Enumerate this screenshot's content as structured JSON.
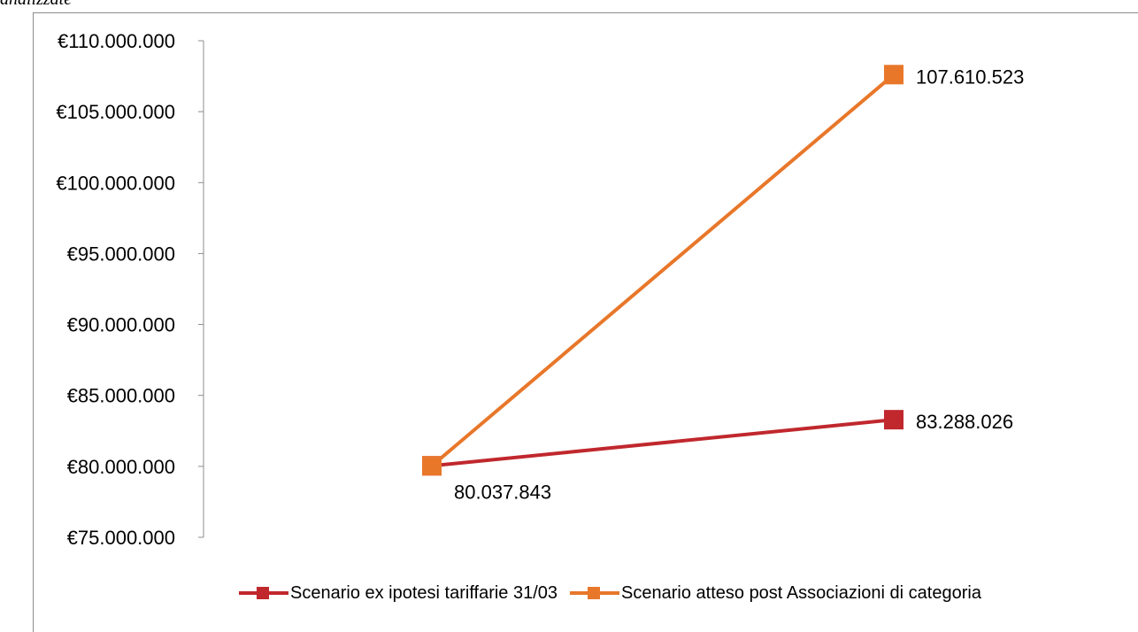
{
  "caption": "analizzate",
  "colors": {
    "series1": "#c0282d",
    "series2": "#e8772a",
    "axis": "#8c8c8c"
  },
  "chart_data": {
    "type": "line",
    "categories": [
      "",
      ""
    ],
    "series": [
      {
        "name": "Scenario ex ipotesi tariffarie 31/03",
        "values": [
          80037843,
          83288026
        ],
        "labels": [
          "",
          "83.288.026"
        ]
      },
      {
        "name": "Scenario atteso post Associazioni di categoria",
        "values": [
          80037843,
          107610523
        ],
        "labels": [
          "80.037.843",
          "107.610.523"
        ]
      }
    ],
    "ylim": [
      75000000,
      110000000
    ],
    "yticks": [
      110000000,
      105000000,
      100000000,
      95000000,
      90000000,
      85000000,
      80000000,
      75000000
    ],
    "ytick_labels": [
      "€110.000.000",
      "€105.000.000",
      "€100.000.000",
      "€95.000.000",
      "€90.000.000",
      "€85.000.000",
      "€80.000.000",
      "€75.000.000"
    ],
    "grid": false,
    "legend": "bottom"
  }
}
